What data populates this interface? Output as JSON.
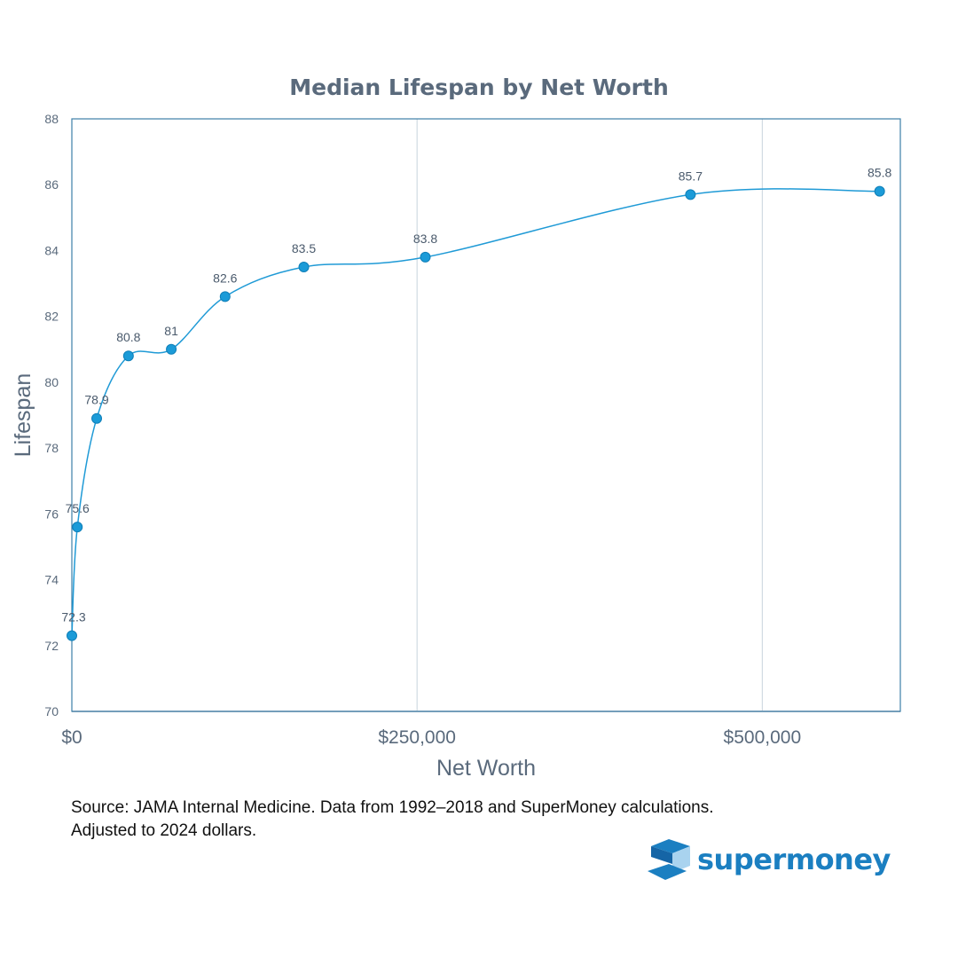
{
  "chart_data": {
    "type": "line",
    "title": "Median Lifespan by Net Worth",
    "xlabel": "Net Worth",
    "ylabel": "Lifespan",
    "xlim": [
      0,
      600000
    ],
    "ylim": [
      70,
      88
    ],
    "x_ticks": [
      0,
      250000,
      500000
    ],
    "x_tick_labels": [
      "$0",
      "$250,000",
      "$500,000"
    ],
    "y_ticks": [
      70,
      72,
      74,
      76,
      78,
      80,
      82,
      84,
      86,
      88
    ],
    "grid": "vertical",
    "smooth": true,
    "series": [
      {
        "x": [
          0,
          4000,
          18000,
          41000,
          72000,
          111000,
          168000,
          256000,
          448000,
          585000
        ],
        "values": [
          72.3,
          75.6,
          78.9,
          80.8,
          81,
          82.6,
          83.5,
          83.8,
          85.7,
          85.8
        ],
        "labels": [
          "72.3",
          "75.6",
          "78.9",
          "80.8",
          "81",
          "82.6",
          "83.5",
          "83.8",
          "85.7",
          "85.8"
        ]
      }
    ]
  },
  "colors": {
    "line": "#1f9ad6",
    "marker": "#1b9bd8",
    "frame": "#3d7fa8",
    "grid": "#c8d3dc",
    "text": "#5a6a7c",
    "brand": "#1b7fc1"
  },
  "footer": {
    "source_line1": "Source: JAMA Internal Medicine. Data from 1992–2018 and SuperMoney calculations.",
    "source_line2": "Adjusted to 2024 dollars."
  },
  "brand": {
    "name": "supermoney",
    "icon": "supermoney-logo-icon"
  }
}
